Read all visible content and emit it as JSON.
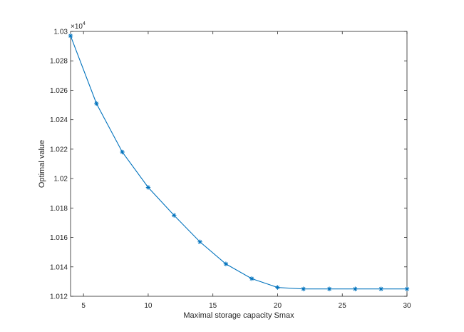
{
  "chart_data": {
    "type": "line",
    "xlabel": "Maximal storage capacity Smax",
    "ylabel": "Optimal value",
    "y_multiplier": {
      "base": "×10",
      "exponent": "4"
    },
    "xlim": [
      4,
      30
    ],
    "ylim": [
      1.012,
      1.03
    ],
    "xticks": [
      5,
      10,
      15,
      20,
      25,
      30
    ],
    "xtick_labels": [
      "5",
      "10",
      "15",
      "20",
      "25",
      "30"
    ],
    "yticks": [
      1.012,
      1.014,
      1.016,
      1.018,
      1.02,
      1.022,
      1.024,
      1.026,
      1.028,
      1.03
    ],
    "ytick_labels": [
      "1.012",
      "1.014",
      "1.016",
      "1.018",
      "1.02",
      "1.022",
      "1.024",
      "1.026",
      "1.028",
      "1.03"
    ],
    "grid": false,
    "marker": "asterisk",
    "series": [
      {
        "color": "#0072BD",
        "x": [
          4,
          6,
          8,
          10,
          12,
          14,
          16,
          18,
          20,
          22,
          24,
          26,
          28,
          30
        ],
        "y": [
          1.0297,
          1.0251,
          1.0218,
          1.0194,
          1.0175,
          1.0157,
          1.0142,
          1.0132,
          1.0126,
          1.0125,
          1.0125,
          1.0125,
          1.0125,
          1.0125
        ]
      }
    ]
  }
}
